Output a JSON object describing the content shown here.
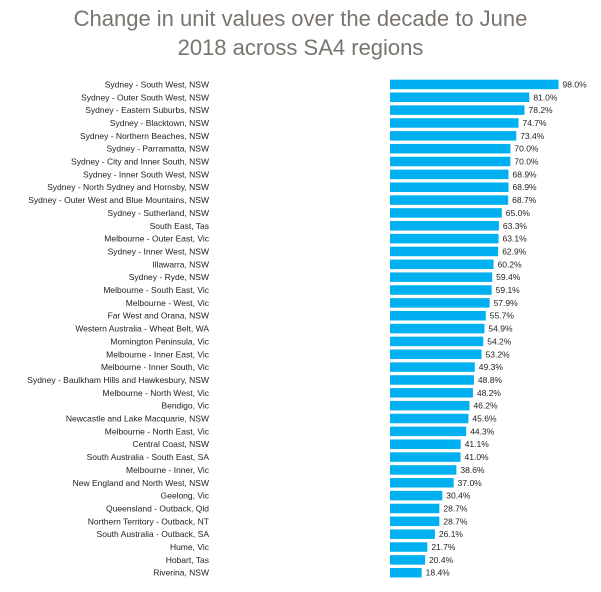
{
  "chart_data": {
    "type": "bar",
    "orientation": "horizontal",
    "title_lines": [
      "Change in unit values over the decade to June",
      "2018 across SA4 regions"
    ],
    "title": "Change in unit values over the decade to June 2018 across SA4 regions",
    "xlabel": "",
    "ylabel": "",
    "value_suffix": "%",
    "xlim": [
      0,
      100
    ],
    "grid": false,
    "bar_color": "#00b0f0",
    "categories": [
      "Sydney - South West, NSW",
      "Sydney - Outer South West, NSW",
      "Sydney - Eastern Suburbs, NSW",
      "Sydney - Blacktown, NSW",
      "Sydney - Northern Beaches, NSW",
      "Sydney - Parramatta, NSW",
      "Sydney - City and Inner South, NSW",
      "Sydney - Inner South West, NSW",
      "Sydney - North Sydney and Hornsby, NSW",
      "Sydney - Outer West and Blue Mountains, NSW",
      "Sydney - Sutherland, NSW",
      "South East, Tas",
      "Melbourne - Outer East, Vic",
      "Sydney - Inner West, NSW",
      "Illawarra, NSW",
      "Sydney - Ryde, NSW",
      "Melbourne - South East, Vic",
      "Melbourne - West, Vic",
      "Far West and Orana, NSW",
      "Western Australia - Wheat Belt, WA",
      "Mornington Peninsula, Vic",
      "Melbourne - Inner East, Vic",
      "Melbourne - Inner South, Vic",
      "Sydney - Baulkham Hills and Hawkesbury, NSW",
      "Melbourne - North West, Vic",
      "Bendigo, Vic",
      "Newcastle and Lake Macquarie, NSW",
      "Melbourne - North East, Vic",
      "Central Coast, NSW",
      "South Australia - South East, SA",
      "Melbourne - Inner, Vic",
      "New England and North West, NSW",
      "Geelong, Vic",
      "Queensland - Outback, Qld",
      "Northern Territory - Outback, NT",
      "South Australia - Outback, SA",
      "Hume, Vic",
      "Hobart, Tas",
      "Riverina, NSW"
    ],
    "values": [
      98.0,
      81.0,
      78.2,
      74.7,
      73.4,
      70.0,
      70.0,
      68.9,
      68.9,
      68.7,
      65.0,
      63.3,
      63.1,
      62.9,
      60.2,
      59.4,
      59.1,
      57.9,
      55.7,
      54.9,
      54.2,
      53.2,
      49.3,
      48.8,
      48.2,
      46.2,
      45.6,
      44.3,
      41.1,
      41.0,
      38.6,
      37.0,
      30.4,
      28.7,
      28.7,
      26.1,
      21.7,
      20.4,
      18.4
    ],
    "value_labels": [
      "98.0%",
      "81.0%",
      "78.2%",
      "74.7%",
      "73.4%",
      "70.0%",
      "70.0%",
      "68.9%",
      "68.9%",
      "68.7%",
      "65.0%",
      "63.3%",
      "63.1%",
      "62.9%",
      "60.2%",
      "59.4%",
      "59.1%",
      "57.9%",
      "55.7%",
      "54.9%",
      "54.2%",
      "53.2%",
      "49.3%",
      "48.8%",
      "48.2%",
      "46.2%",
      "45.6%",
      "44.3%",
      "41.1%",
      "41.0%",
      "38.6%",
      "37.0%",
      "30.4%",
      "28.7%",
      "28.7%",
      "26.1%",
      "21.7%",
      "20.4%",
      "18.4%"
    ]
  }
}
